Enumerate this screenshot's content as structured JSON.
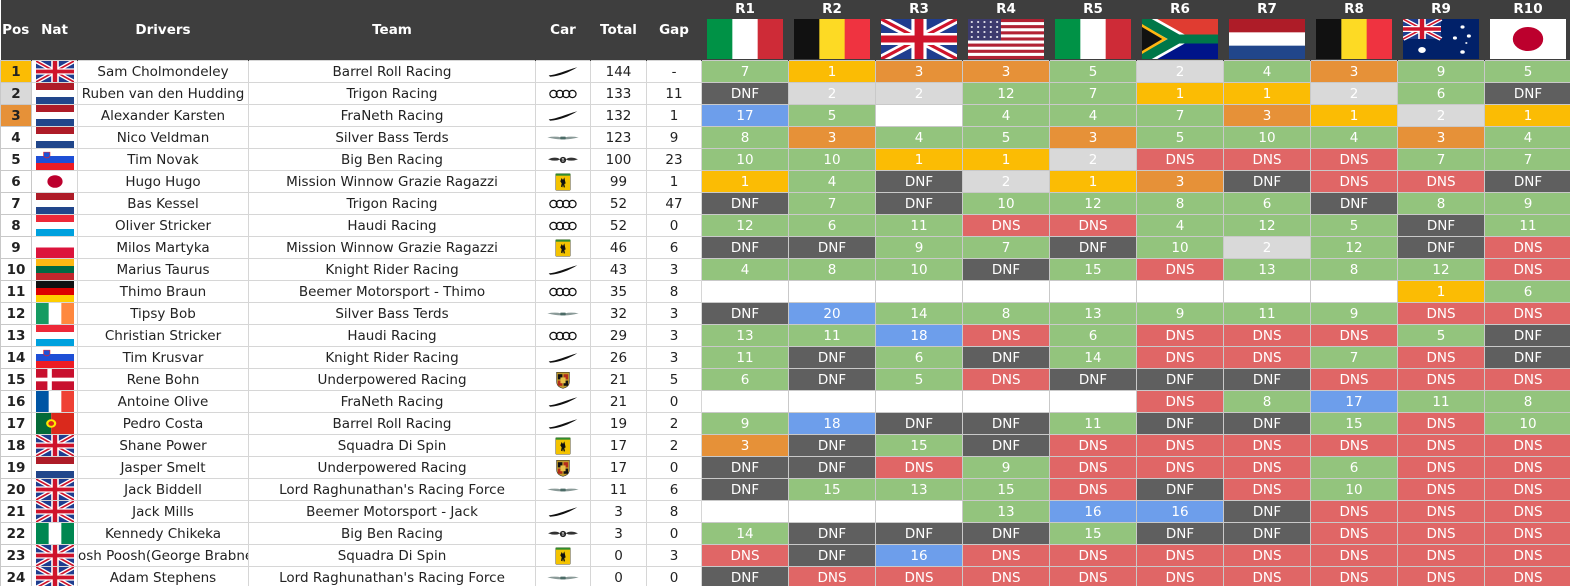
{
  "headers": {
    "pos": "Pos",
    "nat": "Nat",
    "drivers": "Drivers",
    "team": "Team",
    "car": "Car",
    "total": "Total",
    "gap": "Gap"
  },
  "races": [
    {
      "label": "R1",
      "flag": "italy-flag"
    },
    {
      "label": "R2",
      "flag": "belgium-flag"
    },
    {
      "label": "R3",
      "flag": "uk-flag"
    },
    {
      "label": "R4",
      "flag": "usa-flag"
    },
    {
      "label": "R5",
      "flag": "italy-flag"
    },
    {
      "label": "R6",
      "flag": "south-africa-flag"
    },
    {
      "label": "R7",
      "flag": "netherlands-flag"
    },
    {
      "label": "R8",
      "flag": "belgium-flag"
    },
    {
      "label": "R9",
      "flag": "australia-flag"
    },
    {
      "label": "R10",
      "flag": "japan-flag"
    }
  ],
  "colors": {
    "gold": "#fbbc04",
    "silver": "#d9d9d9",
    "bronze": "#e69138",
    "points": "#93c47d",
    "dns": "#e06666",
    "dnf": "#5f5f5f",
    "blue": "#6d9eeb",
    "header": "#3e3e3e"
  },
  "rows": [
    {
      "pos": "1",
      "nat": "uk-flag",
      "driver": "Sam Cholmondeley",
      "team": "Barrel Roll Racing",
      "car": "mclaren-logo",
      "total": "144",
      "gap": "-",
      "results": [
        "7",
        "1",
        "3",
        "3",
        "5",
        "2",
        "4",
        "3",
        "9",
        "5"
      ]
    },
    {
      "pos": "2",
      "nat": "netherlands-flag",
      "driver": "Ruben van den Hudding",
      "team": "Trigon Racing",
      "car": "audi-logo",
      "total": "133",
      "gap": "11",
      "results": [
        "DNF",
        "2",
        "2",
        "12",
        "7",
        "1",
        "1",
        "2",
        "6",
        "DNF"
      ]
    },
    {
      "pos": "3",
      "nat": "netherlands-flag",
      "driver": "Alexander Karsten",
      "team": "FraNeth Racing",
      "car": "mclaren-logo",
      "total": "132",
      "gap": "1",
      "results": [
        "17",
        "5",
        "",
        "4",
        "4",
        "7",
        "3",
        "1",
        "2",
        "1"
      ]
    },
    {
      "pos": "4",
      "nat": "netherlands-flag",
      "driver": "Nico Veldman",
      "team": "Silver Bass Terds",
      "car": "aston-martin-logo",
      "total": "123",
      "gap": "9",
      "results": [
        "8",
        "3",
        "4",
        "5",
        "3",
        "5",
        "10",
        "4",
        "3",
        "4"
      ]
    },
    {
      "pos": "5",
      "nat": "slovenia-flag",
      "driver": "Tim Novak",
      "team": "Big Ben Racing",
      "car": "bentley-logo",
      "total": "100",
      "gap": "23",
      "results": [
        "10",
        "10",
        "1",
        "1",
        "2",
        "DNS",
        "DNS",
        "DNS",
        "7",
        "7"
      ]
    },
    {
      "pos": "6",
      "nat": "japan-flag",
      "driver": "Hugo Hugo",
      "team": "Mission Winnow Grazie Ragazzi",
      "car": "ferrari-logo",
      "total": "99",
      "gap": "1",
      "results": [
        "1",
        "4",
        "DNF",
        "2",
        "1",
        "3",
        "DNF",
        "DNS",
        "DNS",
        "DNF"
      ]
    },
    {
      "pos": "7",
      "nat": "netherlands-flag",
      "driver": "Bas Kessel",
      "team": "Trigon Racing",
      "car": "audi-logo",
      "total": "52",
      "gap": "47",
      "results": [
        "DNF",
        "7",
        "DNF",
        "10",
        "12",
        "8",
        "6",
        "DNF",
        "8",
        "9"
      ]
    },
    {
      "pos": "8",
      "nat": "luxembourg-flag",
      "driver": "Oliver Stricker",
      "team": "Haudi Racing",
      "car": "audi-logo",
      "total": "52",
      "gap": "0",
      "results": [
        "12",
        "6",
        "11",
        "DNS",
        "DNS",
        "4",
        "12",
        "5",
        "DNF",
        "11"
      ]
    },
    {
      "pos": "9",
      "nat": "poland-flag",
      "driver": "Milos Martyka",
      "team": "Mission Winnow Grazie Ragazzi",
      "car": "ferrari-logo",
      "total": "46",
      "gap": "6",
      "results": [
        "DNF",
        "DNF",
        "9",
        "7",
        "DNF",
        "10",
        "2",
        "12",
        "DNF",
        "DNS"
      ]
    },
    {
      "pos": "10",
      "nat": "lithuania-flag",
      "driver": "Marius Taurus",
      "team": "Knight Rider Racing",
      "car": "mclaren-logo",
      "total": "43",
      "gap": "3",
      "results": [
        "4",
        "8",
        "10",
        "DNF",
        "15",
        "DNS",
        "13",
        "8",
        "12",
        "DNS"
      ]
    },
    {
      "pos": "11",
      "nat": "germany-flag",
      "driver": "Thimo Braun",
      "team": "Beemer Motorsport - Thimo",
      "car": "audi-logo",
      "total": "35",
      "gap": "8",
      "results": [
        "",
        "",
        "",
        "",
        "",
        "",
        "",
        "",
        "1",
        "6"
      ]
    },
    {
      "pos": "12",
      "nat": "ireland-flag",
      "driver": "Tipsy Bob",
      "team": "Silver Bass Terds",
      "car": "aston-martin-logo",
      "total": "32",
      "gap": "3",
      "results": [
        "DNF",
        "20",
        "14",
        "8",
        "13",
        "9",
        "11",
        "9",
        "DNS",
        "DNS"
      ]
    },
    {
      "pos": "13",
      "nat": "luxembourg-flag",
      "driver": "Christian Stricker",
      "team": "Haudi Racing",
      "car": "audi-logo",
      "total": "29",
      "gap": "3",
      "results": [
        "13",
        "11",
        "18",
        "DNS",
        "6",
        "DNS",
        "DNS",
        "DNS",
        "5",
        "DNF"
      ]
    },
    {
      "pos": "14",
      "nat": "slovenia-flag",
      "driver": "Tim Krusvar",
      "team": "Knight Rider Racing",
      "car": "mclaren-logo",
      "total": "26",
      "gap": "3",
      "results": [
        "11",
        "DNF",
        "6",
        "DNF",
        "14",
        "DNS",
        "DNS",
        "7",
        "DNS",
        "DNF"
      ]
    },
    {
      "pos": "15",
      "nat": "denmark-flag",
      "driver": "Rene Bohn",
      "team": "Underpowered Racing",
      "car": "porsche-logo",
      "total": "21",
      "gap": "5",
      "results": [
        "6",
        "DNF",
        "5",
        "DNS",
        "DNF",
        "DNF",
        "DNF",
        "DNS",
        "DNS",
        "DNS"
      ]
    },
    {
      "pos": "16",
      "nat": "france-flag",
      "driver": "Antoine Olive",
      "team": "FraNeth Racing",
      "car": "mclaren-logo",
      "total": "21",
      "gap": "0",
      "results": [
        "",
        "",
        "",
        "",
        "",
        "DNS",
        "8",
        "17",
        "11",
        "8"
      ]
    },
    {
      "pos": "17",
      "nat": "portugal-flag",
      "driver": "Pedro Costa",
      "team": "Barrel Roll Racing",
      "car": "mclaren-logo",
      "total": "19",
      "gap": "2",
      "results": [
        "9",
        "18",
        "DNF",
        "DNF",
        "11",
        "DNF",
        "DNF",
        "15",
        "DNS",
        "10"
      ]
    },
    {
      "pos": "18",
      "nat": "uk-flag",
      "driver": "Shane Power",
      "team": "Squadra Di Spin",
      "car": "ferrari-logo",
      "total": "17",
      "gap": "2",
      "results": [
        "3",
        "DNF",
        "15",
        "DNF",
        "DNS",
        "DNS",
        "DNS",
        "DNS",
        "DNS",
        "DNS"
      ]
    },
    {
      "pos": "19",
      "nat": "netherlands-flag",
      "driver": "Jasper Smelt",
      "team": "Underpowered Racing",
      "car": "porsche-logo",
      "total": "17",
      "gap": "0",
      "results": [
        "DNF",
        "DNF",
        "DNS",
        "9",
        "DNS",
        "DNS",
        "DNS",
        "6",
        "DNS",
        "DNS"
      ]
    },
    {
      "pos": "20",
      "nat": "uk-flag",
      "driver": "Jack Biddell",
      "team": "Lord Raghunathan's Racing Force",
      "car": "aston-martin-logo",
      "total": "11",
      "gap": "6",
      "results": [
        "DNF",
        "15",
        "13",
        "15",
        "DNS",
        "DNF",
        "DNS",
        "10",
        "DNS",
        "DNS"
      ]
    },
    {
      "pos": "21",
      "nat": "uk-flag",
      "driver": "Jack Mills",
      "team": "Beemer Motorsport - Jack",
      "car": "mclaren-logo",
      "total": "3",
      "gap": "8",
      "results": [
        "",
        "",
        "",
        "13",
        "16",
        "16",
        "DNF",
        "DNS",
        "DNS",
        "DNS"
      ]
    },
    {
      "pos": "22",
      "nat": "nigeria-flag",
      "driver": "Kennedy Chikeka",
      "team": "Big Ben Racing",
      "car": "bentley-logo",
      "total": "3",
      "gap": "0",
      "results": [
        "14",
        "DNF",
        "DNF",
        "DNF",
        "15",
        "DNF",
        "DNF",
        "DNS",
        "DNS",
        "DNS"
      ]
    },
    {
      "pos": "23",
      "nat": "uk-flag",
      "driver": "osh Poosh(George Brabne",
      "team": "Squadra Di Spin",
      "car": "ferrari-logo",
      "total": "0",
      "gap": "3",
      "results": [
        "DNS",
        "DNF",
        "16",
        "DNS",
        "DNS",
        "DNS",
        "DNS",
        "DNS",
        "DNS",
        "DNS"
      ]
    },
    {
      "pos": "24",
      "nat": "uk-flag",
      "driver": "Adam Stephens",
      "team": "Lord Raghunathan's Racing Force",
      "car": "aston-martin-logo",
      "total": "0",
      "gap": "0",
      "results": [
        "DNF",
        "DNS",
        "DNS",
        "DNS",
        "DNS",
        "DNS",
        "DNS",
        "DNS",
        "DNS",
        "DNS"
      ]
    }
  ],
  "cell_classes": [
    [
      "g",
      "gold",
      "bronze",
      "bronze",
      "g",
      "silver",
      "g",
      "bronze",
      "g",
      "g"
    ],
    [
      "dnf",
      "silver",
      "silver",
      "g",
      "g",
      "gold",
      "gold",
      "silver",
      "g",
      "dnf"
    ],
    [
      "blue",
      "g",
      "empty",
      "g",
      "g",
      "g",
      "bronze",
      "gold",
      "silver",
      "gold"
    ],
    [
      "g",
      "bronze",
      "g",
      "g",
      "bronze",
      "g",
      "g",
      "g",
      "bronze",
      "g"
    ],
    [
      "g",
      "g",
      "gold",
      "gold",
      "silver",
      "dns",
      "dns",
      "dns",
      "g",
      "g"
    ],
    [
      "gold",
      "g",
      "dnf",
      "silver",
      "gold",
      "bronze",
      "dnf",
      "dns",
      "dns",
      "dnf"
    ],
    [
      "dnf",
      "g",
      "dnf",
      "g",
      "g",
      "g",
      "g",
      "dnf",
      "g",
      "g"
    ],
    [
      "g",
      "g",
      "g",
      "dns",
      "dns",
      "g",
      "g",
      "g",
      "dnf",
      "g"
    ],
    [
      "dnf",
      "dnf",
      "g",
      "g",
      "dnf",
      "g",
      "silver",
      "g",
      "dnf",
      "dns"
    ],
    [
      "g",
      "g",
      "g",
      "dnf",
      "g",
      "dns",
      "g",
      "g",
      "g",
      "dns"
    ],
    [
      "empty",
      "empty",
      "empty",
      "empty",
      "empty",
      "empty",
      "empty",
      "empty",
      "gold",
      "g"
    ],
    [
      "dnf",
      "blue",
      "g",
      "g",
      "g",
      "g",
      "g",
      "g",
      "dns",
      "dns"
    ],
    [
      "g",
      "g",
      "blue",
      "dns",
      "g",
      "dns",
      "dns",
      "dns",
      "g",
      "dnf"
    ],
    [
      "g",
      "dnf",
      "g",
      "dnf",
      "g",
      "dns",
      "dns",
      "g",
      "dns",
      "dnf"
    ],
    [
      "g",
      "dnf",
      "g",
      "dns",
      "dnf",
      "dnf",
      "dnf",
      "dns",
      "dns",
      "dns"
    ],
    [
      "empty",
      "empty",
      "empty",
      "empty",
      "empty",
      "dns",
      "g",
      "blue",
      "g",
      "g"
    ],
    [
      "g",
      "blue",
      "dnf",
      "dnf",
      "g",
      "dnf",
      "dnf",
      "g",
      "dns",
      "g"
    ],
    [
      "bronze",
      "dnf",
      "g",
      "dnf",
      "dns",
      "dns",
      "dns",
      "dns",
      "dns",
      "dns"
    ],
    [
      "dnf",
      "dnf",
      "dns",
      "g",
      "dns",
      "dns",
      "dns",
      "g",
      "dns",
      "dns"
    ],
    [
      "dnf",
      "g",
      "g",
      "g",
      "dns",
      "dnf",
      "dns",
      "g",
      "dns",
      "dns"
    ],
    [
      "empty",
      "empty",
      "empty",
      "g",
      "blue",
      "blue",
      "dnf",
      "dns",
      "dns",
      "dns"
    ],
    [
      "g",
      "dnf",
      "dnf",
      "dnf",
      "g",
      "dnf",
      "dnf",
      "dns",
      "dns",
      "dns"
    ],
    [
      "dns",
      "dnf",
      "blue",
      "dns",
      "dns",
      "dns",
      "dns",
      "dns",
      "dns",
      "dns"
    ],
    [
      "dnf",
      "dns",
      "dns",
      "dns",
      "dns",
      "dns",
      "dns",
      "dns",
      "dns",
      "dns"
    ]
  ]
}
